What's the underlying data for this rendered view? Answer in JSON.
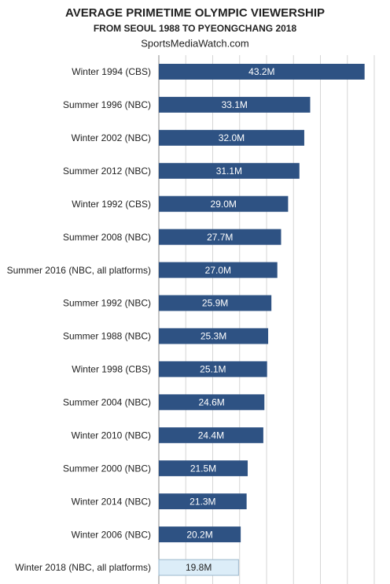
{
  "chart_data": {
    "type": "barh",
    "title": "AVERAGE PRIMETIME OLYMPIC VIEWERSHIP",
    "subtitle": "FROM SEOUL 1988 TO PYEONGCHANG 2018",
    "source": "SportsMediaWatch.com",
    "categories": [
      "Winter 1994 (CBS)",
      "Summer 1996 (NBC)",
      "Winter 2002 (NBC)",
      "Summer 2012 (NBC)",
      "Winter 1992 (CBS)",
      "Summer 2008 (NBC)",
      "Summer 2016 (NBC, all platforms)",
      "Summer 1992 (NBC)",
      "Summer 1988 (NBC)",
      "Winter 1998 (CBS)",
      "Summer 2004 (NBC)",
      "Winter 2010 (NBC)",
      "Summer 2000 (NBC)",
      "Winter 2014 (NBC)",
      "Winter 2006 (NBC)",
      "Winter 2018 (NBC, all platforms)"
    ],
    "values": [
      43.2,
      33.1,
      32.0,
      31.1,
      29.0,
      27.7,
      27.0,
      25.9,
      25.3,
      25.1,
      24.6,
      24.4,
      21.5,
      21.3,
      20.2,
      19.8
    ],
    "value_labels": [
      "43.2M",
      "33.1M",
      "32.0M",
      "31.1M",
      "29.0M",
      "27.7M",
      "27.0M",
      "25.9M",
      "25.3M",
      "25.1M",
      "24.6M",
      "24.4M",
      "21.5M",
      "21.3M",
      "20.2M",
      "19.8M"
    ],
    "colors": [
      "#2e5283",
      "#2e5283",
      "#2e5283",
      "#2e5283",
      "#2e5283",
      "#2e5283",
      "#2e5283",
      "#2e5283",
      "#2e5283",
      "#2e5283",
      "#2e5283",
      "#2e5283",
      "#2e5283",
      "#2e5283",
      "#2e5283",
      "#dcedf8"
    ],
    "xlim": [
      5,
      45
    ],
    "xticks": [
      5,
      10,
      15,
      20,
      25,
      30,
      35,
      40,
      45
    ],
    "grid": true
  }
}
